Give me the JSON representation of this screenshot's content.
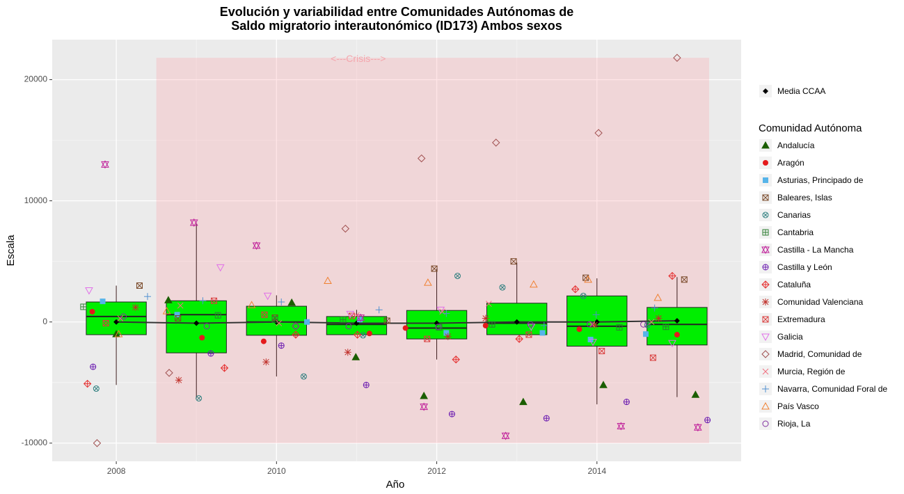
{
  "chart_data": {
    "type": "box",
    "title": [
      "Evolución y variabilidad entre Comunidades Autónomas de",
      "Saldo migratorio interautonómico (ID173) Ambos sexos"
    ],
    "x_label": "Año",
    "y_label": "Escala",
    "xlim": [
      2007.2,
      2015.8
    ],
    "ylim": [
      -11500,
      23300
    ],
    "xticks": [
      2008,
      2010,
      2012,
      2014
    ],
    "yticks": [
      -10000,
      0,
      10000,
      20000
    ],
    "grid": true,
    "legend_title": "Comunidad Autónoma",
    "annotation": {
      "text": "<---Crisis--->",
      "x": [
        2008.5,
        2015.4
      ],
      "y": [
        -10000,
        21800
      ],
      "color": "#f4a6ad"
    },
    "boxes": {
      "x": [
        2008,
        2009,
        2010,
        2011,
        2012,
        2013,
        2014,
        2015
      ],
      "whisker_low": [
        -5200,
        -6300,
        -4500,
        -1000,
        -3100,
        -1000,
        -6800,
        -6200
      ],
      "q1": [
        -1050,
        -2550,
        -1100,
        -1050,
        -1400,
        -1050,
        -2000,
        -1900
      ],
      "median": [
        450,
        600,
        0,
        -200,
        -500,
        -100,
        -350,
        -200
      ],
      "q3": [
        1650,
        1750,
        1300,
        450,
        950,
        1550,
        2150,
        1200
      ],
      "whisker_high": [
        3000,
        8100,
        2200,
        1000,
        4400,
        4900,
        3600,
        3700
      ],
      "color": "#00ee00",
      "width": 0.75
    },
    "mean": {
      "name": "Media CCAA",
      "color": "#000000",
      "values": [
        0,
        -100,
        0,
        -100,
        -100,
        0,
        0,
        100
      ]
    },
    "series": [
      {
        "name": "Andalucía",
        "color": "#1b5e00",
        "shape": "triangle",
        "x": [
          2008.0,
          2008.65,
          2010.19,
          2010.99,
          2011.84,
          2013.08,
          2014.08,
          2015.23
        ],
        "values": [
          -1000,
          1800,
          1600,
          -2900,
          -6100,
          -6600,
          -5200,
          -6000
        ]
      },
      {
        "name": "Aragón",
        "color": "#e41a1c",
        "shape": "circle",
        "x": [
          2007.7,
          2009.07,
          2009.84,
          2011.16,
          2011.61,
          2012.61,
          2013.78,
          2015.0
        ],
        "values": [
          850,
          -1300,
          -1600,
          -950,
          -500,
          -300,
          -600,
          -1050
        ]
      },
      {
        "name": "Asturias, Principado de",
        "color": "#56b4e9",
        "shape": "square",
        "x": [
          2007.83,
          2008.76,
          2010.38,
          2011.04,
          2012.12,
          2013.32,
          2013.92,
          2014.61
        ],
        "values": [
          1700,
          600,
          0,
          200,
          -900,
          -900,
          -1450,
          -1000
        ]
      },
      {
        "name": "Baleares, Islas",
        "color": "#7a4a2a",
        "shape": "square-x",
        "x": [
          2008.29,
          2008.77,
          2009.98,
          2011.38,
          2011.97,
          2012.96,
          2013.86,
          2015.09
        ],
        "values": [
          3000,
          300,
          350,
          100,
          4400,
          5000,
          3650,
          3500
        ]
      },
      {
        "name": "Canarias",
        "color": "#2f7f7f",
        "shape": "circle-x",
        "x": [
          2007.75,
          2009.03,
          2010.34,
          2011.08,
          2012.26,
          2012.82,
          2013.83,
          2014.63
        ],
        "values": [
          -5500,
          -6300,
          -4500,
          -1100,
          3800,
          2850,
          2150,
          -250
        ]
      },
      {
        "name": "Cantabria",
        "color": "#2e7d32",
        "shape": "square-plus",
        "x": [
          2007.59,
          2009.27,
          2009.98,
          2010.83,
          2012.03,
          2012.69,
          2014.28,
          2014.86
        ],
        "values": [
          1250,
          550,
          200,
          200,
          -450,
          -200,
          -450,
          -400
        ]
      },
      {
        "name": "Castilla - La Mancha",
        "color": "#c0209a",
        "shape": "hexagram",
        "x": [
          2007.86,
          2008.97,
          2009.75,
          2011.05,
          2011.84,
          2012.86,
          2014.3,
          2015.26
        ],
        "values": [
          13000,
          8200,
          6300,
          350,
          -7000,
          -9400,
          -8600,
          -8700
        ]
      },
      {
        "name": "Castilla y León",
        "color": "#6a1bb0",
        "shape": "circle-plus",
        "x": [
          2007.71,
          2009.18,
          2010.06,
          2011.12,
          2012.19,
          2013.37,
          2014.37,
          2015.38
        ],
        "values": [
          -3700,
          -2600,
          -1950,
          -5200,
          -7600,
          -7950,
          -6600,
          -8100
        ]
      },
      {
        "name": "Cataluña",
        "color": "#e53030",
        "shape": "diamond-plus",
        "x": [
          2007.64,
          2009.35,
          2010.24,
          2011.01,
          2012.24,
          2013.03,
          2013.73,
          2014.94
        ],
        "values": [
          -5100,
          -3800,
          -1050,
          -1050,
          -3100,
          -1400,
          2700,
          3800
        ]
      },
      {
        "name": "Comunidad Valenciana",
        "color": "#c0302a",
        "shape": "asterisk",
        "x": [
          2008.24,
          2008.78,
          2009.87,
          2010.89,
          2012.14,
          2012.61,
          2013.97,
          2014.77
        ],
        "values": [
          1200,
          -4800,
          -3300,
          -2500,
          -1200,
          300,
          -250,
          300
        ]
      },
      {
        "name": "Extremadura",
        "color": "#d94040",
        "shape": "square-x",
        "x": [
          2007.87,
          2009.22,
          2009.85,
          2010.94,
          2011.88,
          2013.15,
          2014.06,
          2014.7
        ],
        "values": [
          -100,
          1750,
          600,
          500,
          -1400,
          -1050,
          -2400,
          -2950
        ]
      },
      {
        "name": "Galicia",
        "color": "#e070e8",
        "shape": "triangle-down",
        "x": [
          2007.66,
          2009.3,
          2009.89,
          2010.92,
          2012.05,
          2013.18,
          2013.95,
          2014.94
        ],
        "values": [
          2600,
          4500,
          2150,
          650,
          1000,
          -400,
          -1650,
          -1750
        ]
      },
      {
        "name": "Madrid, Comunidad de",
        "color": "#a05050",
        "shape": "diamond",
        "x": [
          2007.76,
          2008.66,
          2010.24,
          2010.86,
          2011.81,
          2012.74,
          2014.02,
          2015.0
        ],
        "values": [
          -10000,
          -4200,
          -350,
          7700,
          13500,
          14800,
          15600,
          21800
        ]
      },
      {
        "name": "Murcia, Región de",
        "color": "#f07080",
        "shape": "x",
        "x": [
          2008.05,
          2008.8,
          2010.03,
          2011.0,
          2012.07,
          2012.65,
          2013.94,
          2014.68
        ],
        "values": [
          300,
          1350,
          -100,
          550,
          850,
          1500,
          -200,
          0
        ]
      },
      {
        "name": "Navarra, Comunidad Foral de",
        "color": "#5090d0",
        "shape": "plus",
        "x": [
          2008.39,
          2009.08,
          2010.06,
          2011.28,
          2012.12,
          2013.34,
          2013.99,
          2014.72
        ],
        "values": [
          2100,
          1750,
          1650,
          1000,
          700,
          -300,
          600,
          1150
        ]
      },
      {
        "name": "País Vasco",
        "color": "#f08030",
        "shape": "triangle-open",
        "x": [
          2008.03,
          2008.63,
          2009.69,
          2010.64,
          2011.89,
          2013.21,
          2013.89,
          2014.76
        ],
        "values": [
          -1000,
          900,
          1400,
          3400,
          3250,
          3100,
          3500,
          2000
        ]
      },
      {
        "name": "Rioja, La",
        "color": "#8030a0",
        "shape": "circle-open",
        "x": [
          2008.09,
          2009.13,
          2010.24,
          2010.9,
          2012.02,
          2013.17,
          2013.91,
          2014.58
        ],
        "values": [
          450,
          -350,
          -350,
          -350,
          -400,
          -200,
          -200,
          -200
        ]
      }
    ]
  }
}
